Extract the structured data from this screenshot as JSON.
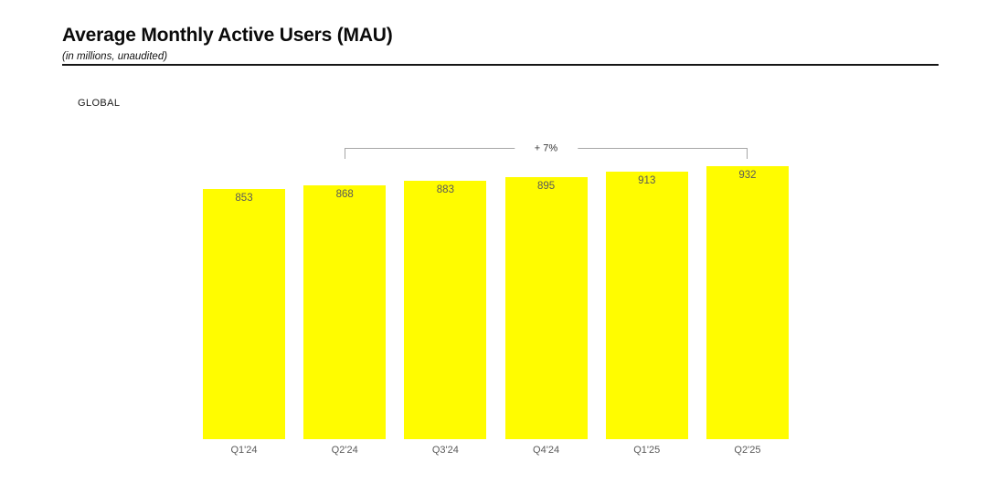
{
  "header": {
    "title": "Average Monthly Active Users (MAU)",
    "subtitle": "(in millions, unaudited)"
  },
  "region_label": "GLOBAL",
  "colors": {
    "bar": "#FFFC00",
    "value_label": "#595959",
    "axis_label": "#595959",
    "bracket_line": "#a6a6a6",
    "title": "#0b0b0b",
    "background": "#ffffff"
  },
  "chart_data": {
    "type": "bar",
    "title": "Average Monthly Active Users (MAU)",
    "subtitle": "(in millions, unaudited)",
    "categories": [
      "Q1'24",
      "Q2'24",
      "Q3'24",
      "Q4'24",
      "Q1'25",
      "Q2'25"
    ],
    "values": [
      853,
      868,
      883,
      895,
      913,
      932
    ],
    "xlabel": "",
    "ylabel": "",
    "ylim": [
      0,
      932
    ],
    "grid": false,
    "legend": false,
    "bar_color": "#FFFC00",
    "value_labels_shown_inside_bars": true,
    "annotations": [
      {
        "label": "+ 7%",
        "from_category": "Q2'24",
        "to_category": "Q2'25"
      }
    ]
  }
}
